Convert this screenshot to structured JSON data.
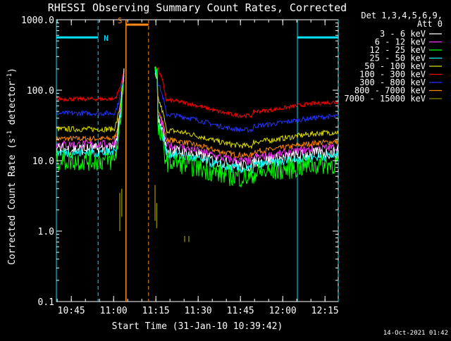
{
  "chart_data": {
    "type": "line",
    "title": "RHESSI Observing Summary Count Rates, Corrected",
    "xlabel": "Start Time (31-Jan-10 10:39:42)",
    "ylabel_main": "Corrected Count Rate (s",
    "ylabel_sup1": "-1",
    "ylabel_mid": " detector",
    "ylabel_sup2": "-1",
    "ylabel_end": ")",
    "yscale": "log",
    "ylim": [
      0.1,
      1000
    ],
    "xlim_minutes": [
      0,
      100
    ],
    "y_tick_labels": [
      "1000.0",
      "100.0",
      "10.0",
      "1.0",
      "0.1"
    ],
    "y_tick_values": [
      1000,
      100,
      10,
      1,
      0.1
    ],
    "x_tick_labels": [
      "10:45",
      "11:00",
      "11:15",
      "11:30",
      "11:45",
      "12:00",
      "12:15"
    ],
    "x_tick_minutes": [
      5.3,
      20.3,
      35.3,
      50.3,
      65.3,
      80.3,
      95.3
    ],
    "detector_info_line1": "Det 1,3,4,5,6,9,",
    "detector_info_line2": "Att 0",
    "series": [
      {
        "name": "3 - 6 keV",
        "color": "#ffffff",
        "base": 14.5,
        "noise": 0.18
      },
      {
        "name": "6 - 12 keV",
        "color": "#ff33ff",
        "base": 17,
        "noise": 0.12
      },
      {
        "name": "12 - 25 keV",
        "color": "#00ff00",
        "base": 10,
        "noise": 0.3
      },
      {
        "name": "25 - 50 keV",
        "color": "#00ffff",
        "base": 13,
        "noise": 0.14
      },
      {
        "name": "50 - 100 keV",
        "color": "#dddd00",
        "base": 28,
        "noise": 0.08
      },
      {
        "name": "100 - 300 keV",
        "color": "#ff0000",
        "base": 75,
        "noise": 0.06
      },
      {
        "name": "300 - 800 keV",
        "color": "#2233ff",
        "base": 47,
        "noise": 0.07
      },
      {
        "name": "800 - 7000 keV",
        "color": "#ff8800",
        "base": 20.5,
        "noise": 0.08
      },
      {
        "name": "7000 - 15000 keV",
        "color": "#888800",
        "base": 2.5,
        "noise": 0.4
      }
    ],
    "peak_value": 190,
    "segments": [
      {
        "start": 0,
        "end": 24
      },
      {
        "start": 35,
        "end": 100
      }
    ],
    "night_label": "N",
    "saa_label": "S",
    "night_intervals": [
      [
        0,
        14.8
      ],
      [
        85.5,
        100
      ]
    ],
    "saa_interval": [
      24.7,
      32.7
    ],
    "night_boundaries_minutes": [
      0,
      14.8,
      85.5,
      100
    ],
    "saa_boundaries_minutes": [
      24.7,
      32.7
    ],
    "night_color": "#00e5ff",
    "saa_color": "#ff8c1a"
  },
  "footer": {
    "timestamp": "14-Oct-2021 01:42"
  }
}
